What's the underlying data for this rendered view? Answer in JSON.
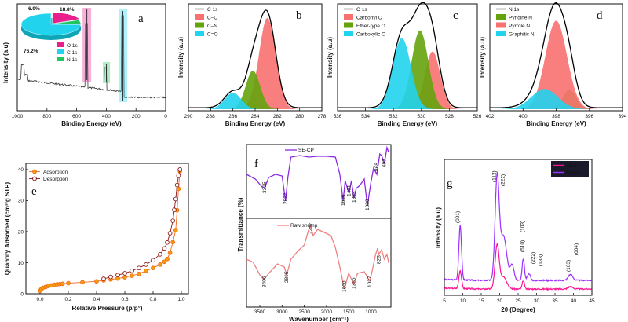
{
  "chart_data": [
    {
      "panel": "a",
      "type": "line",
      "xlabel": "Binding Energy (eV)",
      "ylabel": "Intensity (a.u)",
      "xlim": [
        1000,
        0
      ],
      "xticks": [
        "1000",
        "800",
        "600",
        "400",
        "200",
        "0"
      ],
      "peaks": [
        {
          "label": "O 1s",
          "x": 531,
          "color": "#e91e8c"
        },
        {
          "label": "N 1s",
          "x": 399,
          "color": "#22c55e"
        },
        {
          "label": "C 1s",
          "x": 285,
          "color": "#22d3ee"
        }
      ],
      "pie": {
        "type": "pie",
        "slices": [
          {
            "name": "C 1s",
            "label": "76.2%",
            "value": 76.2,
            "color": "#22d3ee"
          },
          {
            "name": "O 1s",
            "label": "18.8%",
            "value": 18.8,
            "color": "#e91e8c"
          },
          {
            "name": "N 1s",
            "label": "6.9%",
            "value": 6.9,
            "color": "#22c55e"
          }
        ]
      },
      "legend": [
        "O 1s",
        "C 1s",
        "N 1s"
      ]
    },
    {
      "panel": "b",
      "type": "area",
      "xlabel": "Binding Energy (eV)",
      "ylabel": "Intensity (a.u)",
      "xlim": [
        290,
        278
      ],
      "xticks": [
        "290",
        "288",
        "286",
        "284",
        "282",
        "280",
        "278"
      ],
      "legend": [
        "C 1s",
        "C–C",
        "C–N",
        "C=O"
      ],
      "series": [
        {
          "name": "C 1s",
          "type": "envelope",
          "color": "#000000"
        },
        {
          "name": "C–C",
          "center": 282.9,
          "amp": 0.95,
          "sigma": 0.75,
          "color": "#f87171"
        },
        {
          "name": "C–N",
          "center": 284.2,
          "amp": 0.4,
          "sigma": 0.65,
          "color": "#65a30d"
        },
        {
          "name": "C=O",
          "center": 286.0,
          "amp": 0.17,
          "sigma": 0.75,
          "color": "#22d3ee"
        }
      ]
    },
    {
      "panel": "c",
      "type": "area",
      "xlabel": "Binding Energy (eV)",
      "ylabel": "Intensity (a.u)",
      "xlim": [
        536,
        526
      ],
      "xticks": [
        "536",
        "534",
        "532",
        "530",
        "528",
        "526"
      ],
      "legend": [
        "O 1s",
        "Carbonyl O",
        "Ether-type O",
        "Carboxylic O"
      ],
      "series": [
        {
          "name": "O 1s",
          "type": "envelope",
          "color": "#000000"
        },
        {
          "name": "Carbonyl O",
          "center": 529.2,
          "amp": 0.6,
          "sigma": 0.55,
          "color": "#f87171"
        },
        {
          "name": "Ether-type O",
          "center": 530.1,
          "amp": 0.82,
          "sigma": 0.6,
          "color": "#65a30d"
        },
        {
          "name": "Carboxylic O",
          "center": 531.4,
          "amp": 0.74,
          "sigma": 0.65,
          "color": "#22d3ee"
        }
      ]
    },
    {
      "panel": "d",
      "type": "area",
      "xlabel": "Binding Energy (eV)",
      "ylabel": "Intensity (a.u)",
      "xlim": [
        402,
        394
      ],
      "xticks": [
        "402",
        "400",
        "398",
        "396",
        "394"
      ],
      "legend": [
        "N 1s",
        "Pyridine N",
        "Pyrrole N",
        "Graphitic N"
      ],
      "series": [
        {
          "name": "N 1s",
          "type": "envelope",
          "color": "#000000"
        },
        {
          "name": "Pyridine N",
          "center": 397.2,
          "amp": 0.2,
          "sigma": 0.4,
          "color": "#65a30d"
        },
        {
          "name": "Pyrrole N",
          "center": 398.0,
          "amp": 0.92,
          "sigma": 0.65,
          "color": "#f87171"
        },
        {
          "name": "Graphitic N",
          "center": 398.7,
          "amp": 0.21,
          "sigma": 0.8,
          "color": "#22d3ee"
        }
      ]
    },
    {
      "panel": "e",
      "type": "line",
      "xlabel": "Relative Pressure (p/p°)",
      "ylabel": "Quantity Adsorbed (cm³/g STP)",
      "xlim": [
        -0.1,
        1.05
      ],
      "ylim": [
        0,
        42
      ],
      "xticks": [
        "0.0",
        "0.2",
        "0.4",
        "0.6",
        "0.8",
        "1.0"
      ],
      "yticks": [
        "0",
        "10",
        "20",
        "30",
        "40"
      ],
      "legend": [
        "Adsorption",
        "Desorption"
      ],
      "series": [
        {
          "name": "Adsorption",
          "color": "#ef6c1b",
          "x": [
            0.0,
            0.01,
            0.02,
            0.04,
            0.06,
            0.08,
            0.1,
            0.12,
            0.14,
            0.16,
            0.2,
            0.3,
            0.4,
            0.45,
            0.5,
            0.55,
            0.6,
            0.65,
            0.7,
            0.75,
            0.8,
            0.85,
            0.88,
            0.9,
            0.92,
            0.94,
            0.96,
            0.97,
            0.98,
            0.99
          ],
          "y": [
            1.0,
            1.5,
            1.9,
            2.2,
            2.5,
            2.7,
            2.9,
            3.0,
            3.1,
            3.2,
            3.4,
            3.7,
            4.0,
            4.3,
            4.6,
            4.9,
            5.3,
            5.8,
            6.4,
            7.4,
            8.3,
            9.4,
            10.3,
            11.2,
            13.2,
            16.6,
            20.5,
            26.9,
            33.8,
            39.5
          ]
        },
        {
          "name": "Desorption",
          "color": "#8b1a1a",
          "x": [
            0.99,
            0.98,
            0.97,
            0.96,
            0.95,
            0.94,
            0.92,
            0.9,
            0.88,
            0.85,
            0.8,
            0.75,
            0.7,
            0.65,
            0.6,
            0.55,
            0.5,
            0.45
          ],
          "y": [
            40.0,
            38.0,
            35.0,
            30.5,
            27.0,
            23.5,
            19.5,
            16.5,
            14.6,
            12.7,
            10.8,
            9.4,
            8.3,
            7.4,
            6.6,
            6.0,
            5.4,
            4.8
          ]
        }
      ]
    },
    {
      "panel": "f",
      "type": "line",
      "xlabel": "Wavenumber (cm⁻¹)",
      "ylabel": "Transmittance (%)",
      "xlim": [
        3800,
        550
      ],
      "xticks": [
        "3500",
        "3000",
        "2500",
        "2000",
        "1500",
        "1000"
      ],
      "series": [
        {
          "name": "SE-CP",
          "color": "#8b2be2",
          "annotations": [
            "3395",
            "2922",
            "1626",
            "1491",
            "1383",
            "1080",
            "868",
            "697"
          ]
        },
        {
          "name": "Raw shrimp",
          "color": "#f08080",
          "annotations": [
            "3406",
            "2895",
            "2357",
            "1600",
            "1385",
            "1027",
            "823"
          ]
        }
      ]
    },
    {
      "panel": "g",
      "type": "line",
      "xlabel": "2θ (Degree)",
      "ylabel": "Intensity (a.u)",
      "xlim": [
        5,
        45
      ],
      "xticks": [
        "5",
        "10",
        "15",
        "20",
        "25",
        "30",
        "35",
        "40",
        "45"
      ],
      "legend": [
        "After",
        "Before"
      ],
      "peak_labels": [
        "(001)",
        "(112)",
        "(222)",
        "(510)",
        "(103)",
        "(222)",
        "(133)",
        "(103)",
        "(004)"
      ],
      "series": [
        {
          "name": "After",
          "color": "#ff1493"
        },
        {
          "name": "Before",
          "color": "#9b30ff"
        }
      ]
    }
  ]
}
